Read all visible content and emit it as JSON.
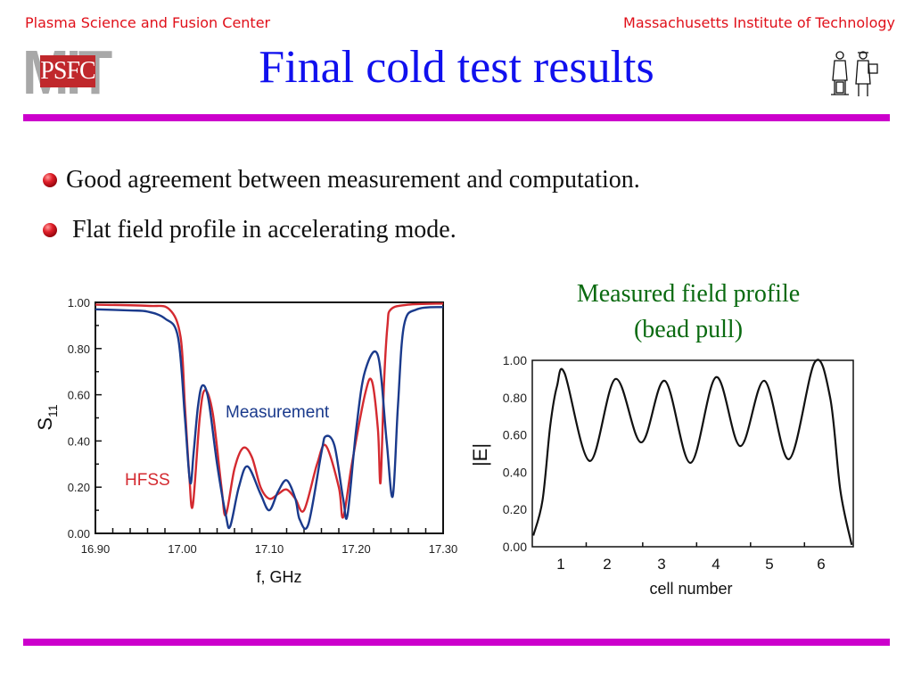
{
  "header": {
    "left_org": "Plasma Science and Fusion Center",
    "right_org": "Massachusetts Institute of Technology",
    "logo_mit": "MIT",
    "logo_psfc": "PSFC"
  },
  "title": "Final cold test results",
  "bullets": [
    {
      "text": "Good agreement between measurement and computation."
    },
    {
      "text": " Flat field profile in accelerating mode."
    }
  ],
  "caption": {
    "line1": "Measured field profile",
    "line2": "(bead pull)"
  },
  "colors": {
    "header_text": "#e0101a",
    "title": "#1010ee",
    "rule": "#cc00cc",
    "caption": "#0a6a10",
    "measurement": "#1a3a8c",
    "hfss": "#d42a30"
  },
  "chart_data": [
    {
      "type": "line",
      "title": "",
      "xlabel": "f, GHz",
      "ylabel": "S11",
      "xlim": [
        16.9,
        17.3
      ],
      "ylim": [
        0.0,
        1.0
      ],
      "x_ticks": [
        "16.90",
        "17.00",
        "17.10",
        "17.20",
        "17.30"
      ],
      "y_ticks": [
        "0.00",
        "0.20",
        "0.40",
        "0.60",
        "0.80",
        "1.00"
      ],
      "grid": false,
      "annotations": [
        "Measurement",
        "HFSS"
      ],
      "series": [
        {
          "name": "Measurement",
          "color": "#1a3a8c",
          "x": [
            16.9,
            16.94,
            16.96,
            16.98,
            16.995,
            17.003,
            17.009,
            17.013,
            17.018,
            17.023,
            17.03,
            17.04,
            17.05,
            17.055,
            17.065,
            17.075,
            17.09,
            17.1,
            17.11,
            17.12,
            17.13,
            17.135,
            17.145,
            17.16,
            17.165,
            17.175,
            17.185,
            17.19,
            17.2,
            17.21,
            17.225,
            17.235,
            17.242,
            17.248,
            17.255,
            17.27,
            17.3
          ],
          "y": [
            0.97,
            0.965,
            0.96,
            0.93,
            0.85,
            0.5,
            0.22,
            0.35,
            0.55,
            0.64,
            0.58,
            0.3,
            0.08,
            0.03,
            0.2,
            0.29,
            0.17,
            0.1,
            0.18,
            0.23,
            0.15,
            0.06,
            0.04,
            0.35,
            0.42,
            0.38,
            0.15,
            0.08,
            0.45,
            0.7,
            0.77,
            0.4,
            0.16,
            0.55,
            0.9,
            0.97,
            0.98
          ]
        },
        {
          "name": "HFSS",
          "color": "#d42a30",
          "x": [
            16.9,
            16.96,
            16.985,
            16.998,
            17.003,
            17.008,
            17.012,
            17.02,
            17.026,
            17.035,
            17.045,
            17.05,
            17.06,
            17.07,
            17.08,
            17.09,
            17.1,
            17.11,
            17.12,
            17.13,
            17.14,
            17.155,
            17.165,
            17.18,
            17.185,
            17.195,
            17.21,
            17.218,
            17.225,
            17.228,
            17.232,
            17.236,
            17.24,
            17.26,
            17.3
          ],
          "y": [
            0.99,
            0.985,
            0.97,
            0.85,
            0.55,
            0.25,
            0.12,
            0.5,
            0.62,
            0.52,
            0.2,
            0.08,
            0.28,
            0.37,
            0.33,
            0.2,
            0.15,
            0.17,
            0.19,
            0.15,
            0.1,
            0.3,
            0.38,
            0.2,
            0.07,
            0.3,
            0.6,
            0.66,
            0.45,
            0.22,
            0.65,
            0.9,
            0.97,
            0.99,
            0.995
          ]
        }
      ]
    },
    {
      "type": "line",
      "title": "Measured field profile (bead pull)",
      "xlabel": "cell number",
      "ylabel": "|E|",
      "xlim": [
        0.5,
        6.75
      ],
      "ylim": [
        0.0,
        1.0
      ],
      "x_ticks": [
        "1",
        "2",
        "3",
        "4",
        "5",
        "6"
      ],
      "y_ticks": [
        "0.00",
        "0.20",
        "0.40",
        "0.60",
        "0.80",
        "1.00"
      ],
      "grid": false,
      "series": [
        {
          "name": "|E|",
          "color": "#111111",
          "peaks": [
            {
              "cell": 1,
              "value": 0.93
            },
            {
              "cell": 2,
              "value": 0.9
            },
            {
              "cell": 3,
              "value": 0.89
            },
            {
              "cell": 4,
              "value": 0.91
            },
            {
              "cell": 5,
              "value": 0.89
            },
            {
              "cell": 6,
              "value": 0.99
            }
          ],
          "valleys": [
            {
              "between": "1-2",
              "value": 0.46
            },
            {
              "between": "2-3",
              "value": 0.56
            },
            {
              "between": "3-4",
              "value": 0.45
            },
            {
              "between": "4-5",
              "value": 0.54
            },
            {
              "between": "5-6",
              "value": 0.47
            }
          ],
          "start_value": 0.06,
          "end_value": 0.01
        }
      ]
    }
  ]
}
